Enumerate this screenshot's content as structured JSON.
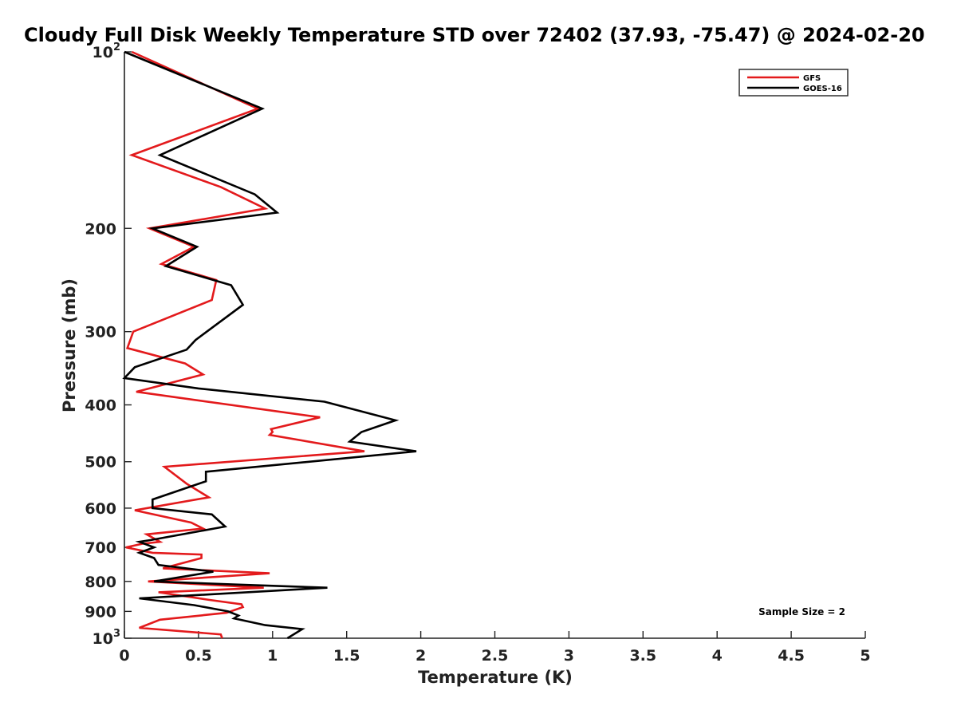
{
  "chart_data": {
    "type": "line",
    "title": "Cloudy Full Disk Weekly Temperature STD over 72402 (37.93, -75.47) @ 2024-02-20",
    "xlabel": "Temperature (K)",
    "ylabel": "Pressure (mb)",
    "xlim": [
      0,
      5
    ],
    "ylim": [
      100,
      1000
    ],
    "y_scale": "log",
    "y_reversed": true,
    "x_ticks": [
      "0",
      "0.5",
      "1",
      "1.5",
      "2",
      "2.5",
      "3",
      "3.5",
      "4",
      "4.5",
      "5"
    ],
    "y_ticks": [
      {
        "value": 100,
        "label": "10",
        "sup": "2"
      },
      {
        "value": 200,
        "label": "200",
        "sup": ""
      },
      {
        "value": 300,
        "label": "300",
        "sup": ""
      },
      {
        "value": 400,
        "label": "400",
        "sup": ""
      },
      {
        "value": 500,
        "label": "500",
        "sup": ""
      },
      {
        "value": 600,
        "label": "600",
        "sup": ""
      },
      {
        "value": 700,
        "label": "700",
        "sup": ""
      },
      {
        "value": 800,
        "label": "800",
        "sup": ""
      },
      {
        "value": 900,
        "label": "900",
        "sup": ""
      },
      {
        "value": 1000,
        "label": "10",
        "sup": "3"
      }
    ],
    "grid": false,
    "legend_position": "top-right",
    "annotation": "Sample Size = 2",
    "series": [
      {
        "name": "GFS",
        "color": "#e31a1c",
        "points": [
          [
            0.05,
            100
          ],
          [
            0.9,
            125
          ],
          [
            0.05,
            150
          ],
          [
            0.65,
            170
          ],
          [
            0.95,
            185
          ],
          [
            0.17,
            200
          ],
          [
            0.47,
            215
          ],
          [
            0.25,
            230
          ],
          [
            0.62,
            245
          ],
          [
            0.59,
            265
          ],
          [
            0.06,
            300
          ],
          [
            0.02,
            320
          ],
          [
            0.41,
            340
          ],
          [
            0.53,
            355
          ],
          [
            0.08,
            380
          ],
          [
            1.32,
            420
          ],
          [
            0.99,
            440
          ],
          [
            1.0,
            445
          ],
          [
            0.98,
            450
          ],
          [
            1.62,
            480
          ],
          [
            0.27,
            510
          ],
          [
            0.42,
            545
          ],
          [
            0.57,
            575
          ],
          [
            0.07,
            605
          ],
          [
            0.45,
            635
          ],
          [
            0.53,
            650
          ],
          [
            0.15,
            665
          ],
          [
            0.24,
            685
          ],
          [
            0.12,
            690
          ],
          [
            0.01,
            700
          ],
          [
            0.19,
            715
          ],
          [
            0.52,
            720
          ],
          [
            0.52,
            730
          ],
          [
            0.26,
            760
          ],
          [
            0.98,
            775
          ],
          [
            0.16,
            800
          ],
          [
            0.94,
            820
          ],
          [
            0.23,
            835
          ],
          [
            0.57,
            860
          ],
          [
            0.79,
            875
          ],
          [
            0.8,
            885
          ],
          [
            0.69,
            905
          ],
          [
            0.24,
            930
          ],
          [
            0.1,
            960
          ],
          [
            0.65,
            985
          ],
          [
            0.66,
            1000
          ]
        ]
      },
      {
        "name": "GOES-16",
        "color": "#000000",
        "points": [
          [
            0.0,
            100
          ],
          [
            0.93,
            125
          ],
          [
            0.24,
            150
          ],
          [
            0.88,
            175
          ],
          [
            1.03,
            188
          ],
          [
            0.19,
            200
          ],
          [
            0.49,
            215
          ],
          [
            0.28,
            232
          ],
          [
            0.72,
            250
          ],
          [
            0.8,
            270
          ],
          [
            0.48,
            310
          ],
          [
            0.42,
            322
          ],
          [
            0.07,
            345
          ],
          [
            0.0,
            360
          ],
          [
            0.5,
            375
          ],
          [
            1.35,
            395
          ],
          [
            1.83,
            425
          ],
          [
            1.6,
            445
          ],
          [
            1.52,
            462
          ],
          [
            1.97,
            480
          ],
          [
            0.55,
            520
          ],
          [
            0.55,
            540
          ],
          [
            0.19,
            580
          ],
          [
            0.19,
            600
          ],
          [
            0.59,
            615
          ],
          [
            0.68,
            645
          ],
          [
            0.18,
            680
          ],
          [
            0.1,
            685
          ],
          [
            0.2,
            700
          ],
          [
            0.1,
            715
          ],
          [
            0.2,
            730
          ],
          [
            0.23,
            750
          ],
          [
            0.6,
            770
          ],
          [
            0.2,
            800
          ],
          [
            0.75,
            810
          ],
          [
            1.37,
            820
          ],
          [
            0.1,
            855
          ],
          [
            0.47,
            878
          ],
          [
            0.7,
            900
          ],
          [
            0.77,
            915
          ],
          [
            0.74,
            925
          ],
          [
            0.95,
            950
          ],
          [
            1.2,
            965
          ],
          [
            1.1,
            1000
          ]
        ]
      }
    ]
  }
}
